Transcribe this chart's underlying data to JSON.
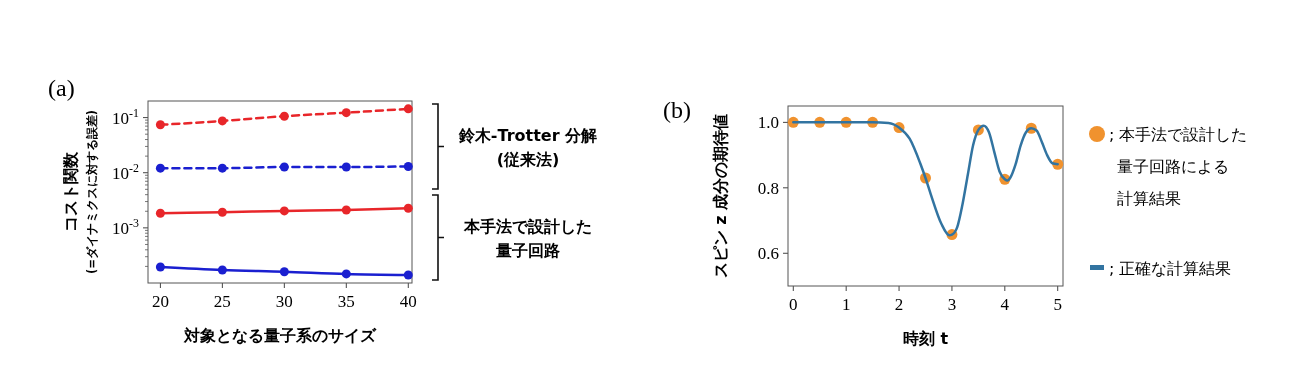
{
  "chart_data": [
    {
      "type": "line",
      "title": "(a)",
      "xlabel": "対象となる量子系のサイズ",
      "ylabel": "コスト関数\n(=ダイナミクスに対する誤差)",
      "x": [
        20,
        25,
        30,
        35,
        40
      ],
      "series": [
        {
          "color": "#e8262a",
          "line_style": "dashed",
          "values": [
            0.074,
            0.087,
            0.106,
            0.123,
            0.144
          ]
        },
        {
          "color": "#1a1fd0",
          "line_style": "dashed",
          "values": [
            0.0121,
            0.0121,
            0.0127,
            0.0127,
            0.013
          ]
        },
        {
          "color": "#e8262a",
          "line_style": "solid",
          "values": [
            0.00184,
            0.00192,
            0.00203,
            0.00211,
            0.00227
          ]
        },
        {
          "color": "#1a1fd0",
          "line_style": "solid",
          "values": [
            0.000195,
            0.000172,
            0.00016,
            0.000146,
            0.00014
          ]
        }
      ],
      "log": "y",
      "marker": "circle",
      "xlim": [
        19,
        40.3
      ],
      "xticks": [
        20,
        25,
        30,
        35,
        40
      ],
      "ylim": [
        0.0001,
        0.2
      ],
      "yticks": [
        {
          "value": 0.1,
          "label": "10$^{-1}$"
        },
        {
          "value": 0.01,
          "label": "10$^{-2}$"
        },
        {
          "value": 0.001,
          "label": "10$^{-3}$"
        }
      ],
      "annotations": [
        "鈴木-Trotter 分解 (従来法)",
        "本手法で設計した量子回路"
      ]
    },
    {
      "type": "line",
      "title": "(b)",
      "xlabel": "時刻 t",
      "ylabel": "スピン z 成分の期待値",
      "series": [
        {
          "type": "scatter",
          "name": "; 本手法で設計した量子回路による計算結果",
          "color": "#f0922e",
          "marker": "circle",
          "x": [
            0,
            0.5,
            1,
            1.5,
            2,
            2.5,
            3,
            3.5,
            4,
            4.5,
            5
          ],
          "values": [
            1.0,
            1.0,
            1.0,
            1.0,
            0.984,
            0.83,
            0.657,
            0.977,
            0.826,
            0.982,
            0.872
          ]
        },
        {
          "type": "line",
          "name": "; 正確な計算結果",
          "color": "#3274a1",
          "marker": "none",
          "x": [
            0,
            0.5,
            1,
            1.5,
            1.8,
            2.0,
            2.2,
            2.4,
            2.5,
            2.6,
            2.8,
            2.95,
            3.0,
            3.1,
            3.2,
            3.3,
            3.4,
            3.5,
            3.6,
            3.7,
            3.8,
            3.9,
            4.0,
            4.05,
            4.1,
            4.2,
            4.3,
            4.4,
            4.5,
            4.6,
            4.7,
            4.8,
            4.9,
            5.0
          ],
          "values": [
            1.0,
            1.0,
            1.0,
            1.0,
            0.998,
            0.984,
            0.95,
            0.875,
            0.83,
            0.78,
            0.69,
            0.655,
            0.657,
            0.68,
            0.75,
            0.84,
            0.93,
            0.977,
            0.99,
            0.97,
            0.91,
            0.85,
            0.826,
            0.822,
            0.83,
            0.87,
            0.93,
            0.97,
            0.982,
            0.975,
            0.94,
            0.9,
            0.875,
            0.872
          ]
        }
      ],
      "legend": "right",
      "xlim": [
        -0.1,
        5.1
      ],
      "xticks": [
        0,
        1,
        2,
        3,
        4,
        5
      ],
      "ylim": [
        0.5,
        1.05
      ],
      "yticks": [
        {
          "value": 0.6,
          "label": "0.6"
        },
        {
          "value": 0.8,
          "label": "0.8"
        },
        {
          "value": 1.0,
          "label": "1.0"
        }
      ]
    }
  ]
}
